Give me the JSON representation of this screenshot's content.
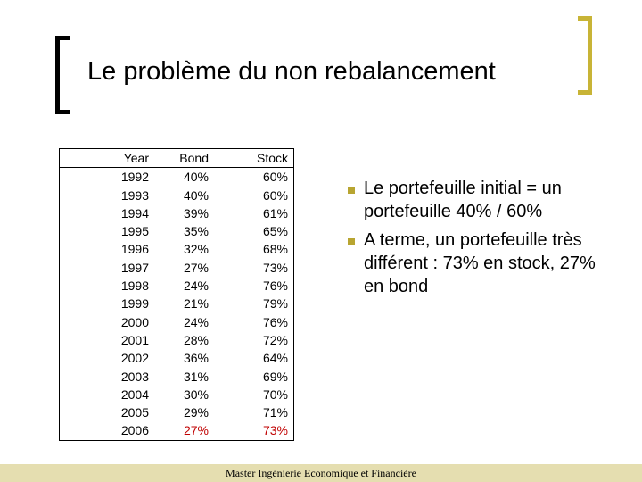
{
  "title": "Le problème du non rebalancement",
  "table": {
    "headers": {
      "year": "Year",
      "bond": "Bond",
      "stock": "Stock"
    },
    "rows": [
      {
        "year": "1992",
        "bond": "40%",
        "stock": "60%"
      },
      {
        "year": "1993",
        "bond": "40%",
        "stock": "60%"
      },
      {
        "year": "1994",
        "bond": "39%",
        "stock": "61%"
      },
      {
        "year": "1995",
        "bond": "35%",
        "stock": "65%"
      },
      {
        "year": "1996",
        "bond": "32%",
        "stock": "68%"
      },
      {
        "year": "1997",
        "bond": "27%",
        "stock": "73%"
      },
      {
        "year": "1998",
        "bond": "24%",
        "stock": "76%"
      },
      {
        "year": "1999",
        "bond": "21%",
        "stock": "79%"
      },
      {
        "year": "2000",
        "bond": "24%",
        "stock": "76%"
      },
      {
        "year": "2001",
        "bond": "28%",
        "stock": "72%"
      },
      {
        "year": "2002",
        "bond": "36%",
        "stock": "64%"
      },
      {
        "year": "2003",
        "bond": "31%",
        "stock": "69%"
      },
      {
        "year": "2004",
        "bond": "30%",
        "stock": "70%"
      },
      {
        "year": "2005",
        "bond": "29%",
        "stock": "71%"
      },
      {
        "year": "2006",
        "bond": "27%",
        "stock": "73%",
        "highlight": true
      }
    ]
  },
  "bullets": [
    "Le portefeuille initial = un portefeuille 40% / 60%",
    " A terme, un portefeuille très différent :  73% en stock, 27% en bond"
  ],
  "footer": "Master Ingénierie Economique et Financière",
  "colors": {
    "accent": "#c8b436",
    "bullet": "#b8a531",
    "highlight_text": "#c00000",
    "footer_bg": "#e5deb0"
  }
}
